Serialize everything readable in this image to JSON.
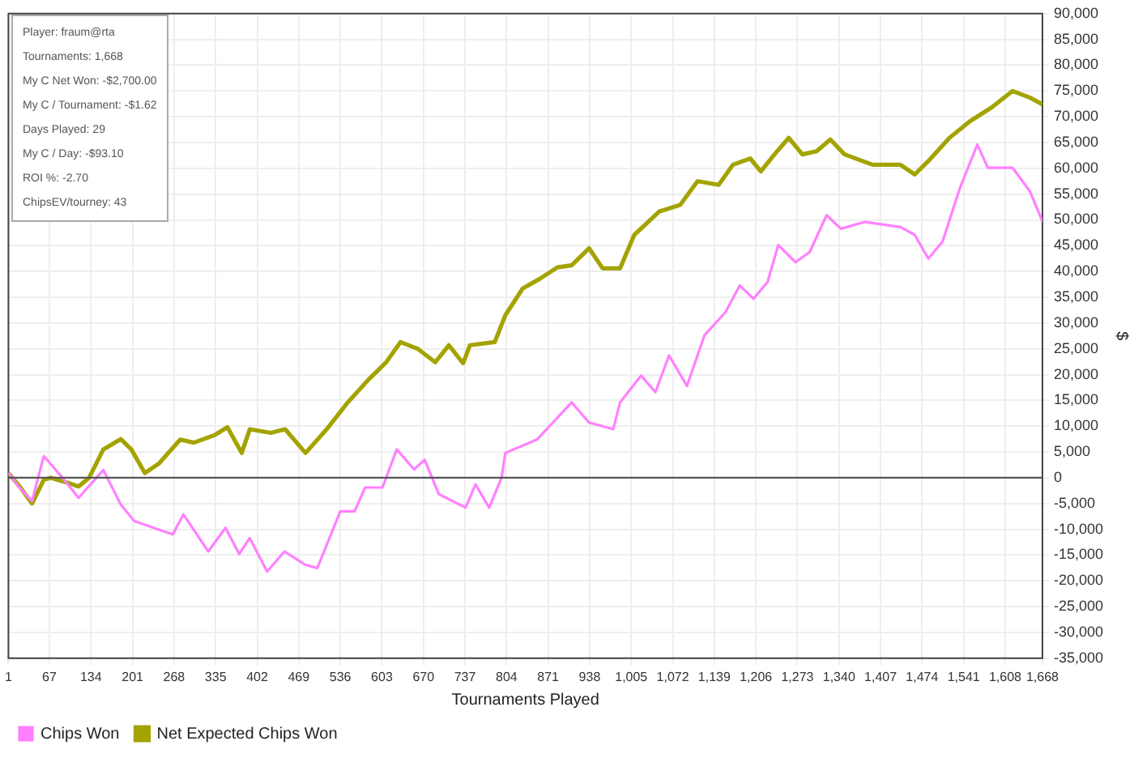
{
  "chart_data": {
    "type": "line",
    "xlabel": "Tournaments Played",
    "ylabel": "$",
    "annotations": [
      "Player: fraum@rta",
      "Tournaments: 1,668",
      "My C Net Won: -$2,700.00",
      "My C / Tournament: -$1.62",
      "Days Played: 29",
      "My C / Day: -$93.10",
      "ROI %: -2.70",
      "ChipsEV/tourney: 43"
    ],
    "series": [
      {
        "name": "Chips Won",
        "color": "#ff80ff",
        "x": [
          1,
          19,
          39,
          58,
          86,
          114,
          154,
          182,
          204,
          266,
          283,
          323,
          351,
          373,
          390,
          418,
          446,
          480,
          499,
          536,
          559,
          576,
          604,
          627,
          655,
          672,
          695,
          738,
          754,
          776,
          796,
          802,
          853,
          909,
          937,
          976,
          987,
          1021,
          1044,
          1066,
          1095,
          1123,
          1157,
          1180,
          1202,
          1225,
          1242,
          1270,
          1293,
          1320,
          1343,
          1382,
          1439,
          1462,
          1484,
          1507,
          1535,
          1563,
          1580,
          1620,
          1648,
          1668
        ],
        "values": [
          1000,
          -2000,
          -4500,
          4200,
          300,
          -3900,
          1500,
          -5200,
          -8400,
          -11000,
          -7100,
          -14300,
          -9700,
          -14800,
          -11700,
          -18200,
          -14300,
          -16900,
          -17500,
          -6500,
          -6500,
          -1900,
          -1900,
          5500,
          1600,
          3500,
          -3200,
          -5800,
          -1300,
          -5800,
          0,
          4800,
          7400,
          14600,
          10700,
          9400,
          14600,
          19800,
          16600,
          23700,
          17800,
          27600,
          32100,
          37300,
          34700,
          38000,
          45100,
          41800,
          43800,
          50900,
          48300,
          49600,
          48600,
          47100,
          42500,
          45800,
          56200,
          64600,
          60100,
          60100,
          55500,
          49700
        ]
      },
      {
        "name": "Net Expected Chips Won",
        "color": "#a3a300",
        "x": [
          1,
          19,
          39,
          58,
          69,
          97,
          114,
          131,
          154,
          182,
          199,
          221,
          244,
          278,
          300,
          334,
          354,
          377,
          390,
          424,
          447,
          480,
          514,
          548,
          582,
          610,
          633,
          661,
          689,
          711,
          734,
          745,
          785,
          802,
          830,
          858,
          886,
          909,
          937,
          959,
          987,
          1010,
          1050,
          1084,
          1112,
          1146,
          1169,
          1197,
          1214,
          1236,
          1259,
          1281,
          1304,
          1326,
          1349,
          1394,
          1439,
          1462,
          1484,
          1518,
          1552,
          1586,
          1620,
          1648,
          1668
        ],
        "values": [
          900,
          -1700,
          -5000,
          -400,
          0,
          -1000,
          -1700,
          0,
          5500,
          7500,
          5500,
          900,
          2800,
          7400,
          6800,
          8300,
          9800,
          4800,
          9400,
          8700,
          9400,
          4800,
          9400,
          14600,
          19100,
          22400,
          26300,
          25000,
          22400,
          25700,
          22200,
          25700,
          26300,
          31500,
          36700,
          38600,
          40800,
          41200,
          44500,
          40600,
          40600,
          47100,
          51600,
          52900,
          57500,
          56800,
          60700,
          61900,
          59400,
          62700,
          65900,
          62700,
          63300,
          65600,
          62700,
          60700,
          60700,
          58800,
          61400,
          65900,
          69200,
          71800,
          75000,
          73700,
          72400
        ]
      }
    ],
    "xlim": [
      1,
      1668
    ],
    "xticks": [
      1,
      67,
      134,
      201,
      268,
      335,
      402,
      469,
      536,
      603,
      670,
      737,
      804,
      871,
      938,
      {
        "value": 1005,
        "label": "1,005"
      },
      {
        "value": 1072,
        "label": "1,072"
      },
      {
        "value": 1139,
        "label": "1,139"
      },
      {
        "value": 1206,
        "label": "1,206"
      },
      {
        "value": 1273,
        "label": "1,273"
      },
      {
        "value": 1340,
        "label": "1,340"
      },
      {
        "value": 1407,
        "label": "1,407"
      },
      {
        "value": 1474,
        "label": "1,474"
      },
      {
        "value": 1541,
        "label": "1,541"
      },
      {
        "value": 1608,
        "label": "1,608"
      },
      {
        "value": 1668,
        "label": "1,668"
      }
    ],
    "ylim": [
      -35000,
      90000
    ],
    "yticks": [
      {
        "value": -35000,
        "label": "-35,000"
      },
      {
        "value": -30000,
        "label": "-30,000"
      },
      {
        "value": -25000,
        "label": "-25,000"
      },
      {
        "value": -20000,
        "label": "-20,000"
      },
      {
        "value": -15000,
        "label": "-15,000"
      },
      {
        "value": -10000,
        "label": "-10,000"
      },
      {
        "value": -5000,
        "label": "-5,000"
      },
      0,
      {
        "value": 5000,
        "label": "5,000"
      },
      {
        "value": 10000,
        "label": "10,000"
      },
      {
        "value": 15000,
        "label": "15,000"
      },
      {
        "value": 20000,
        "label": "20,000"
      },
      {
        "value": 25000,
        "label": "25,000"
      },
      {
        "value": 30000,
        "label": "30,000"
      },
      {
        "value": 35000,
        "label": "35,000"
      },
      {
        "value": 40000,
        "label": "40,000"
      },
      {
        "value": 45000,
        "label": "45,000"
      },
      {
        "value": 50000,
        "label": "50,000"
      },
      {
        "value": 55000,
        "label": "55,000"
      },
      {
        "value": 60000,
        "label": "60,000"
      },
      {
        "value": 65000,
        "label": "65,000"
      },
      {
        "value": 70000,
        "label": "70,000"
      },
      {
        "value": 75000,
        "label": "75,000"
      },
      {
        "value": 80000,
        "label": "80,000"
      },
      {
        "value": 85000,
        "label": "85,000"
      },
      {
        "value": 90000,
        "label": "90,000"
      }
    ],
    "ref_lines": [
      {
        "axis": "y",
        "value": 0,
        "color": "#555555"
      }
    ],
    "grid": true,
    "legend": "bottom left",
    "marker": "none",
    "line_style": "solid"
  }
}
